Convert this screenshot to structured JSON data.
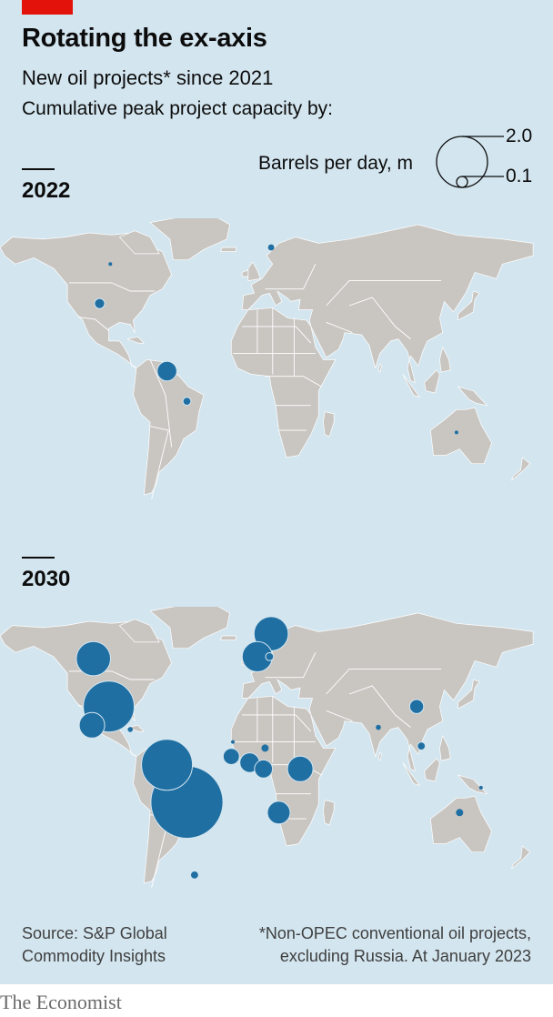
{
  "header": {
    "title": "Rotating the ex-axis",
    "subtitle": "New oil projects* since 2021",
    "subsubtitle": "Cumulative peak project capacity by:"
  },
  "legend": {
    "label": "Barrels per day, m",
    "max_label": "2.0",
    "min_label": "0.1",
    "max_value": 2.0,
    "min_value": 0.1
  },
  "colors": {
    "bubble": "#1f6fa3",
    "land": "#c9c6c2",
    "sea": "#d3e5ef",
    "borders": "#ffffff"
  },
  "maps": [
    {
      "year": "2022",
      "projects": [
        {
          "place": "Norway",
          "lon": 9,
          "lat": 66,
          "capacity": 0.03
        },
        {
          "place": "Canada",
          "lon": -96,
          "lat": 58,
          "capacity": 0.01
        },
        {
          "place": "United States",
          "lon": -103,
          "lat": 39,
          "capacity": 0.08
        },
        {
          "place": "Guyana",
          "lon": -59,
          "lat": 6.5,
          "capacity": 0.3
        },
        {
          "place": "Brazil",
          "lon": -46,
          "lat": -8,
          "capacity": 0.05
        },
        {
          "place": "Australia",
          "lon": 130,
          "lat": -23,
          "capacity": 0.01
        }
      ]
    },
    {
      "year": "2030",
      "projects": [
        {
          "place": "Canada",
          "lon": -107,
          "lat": 55,
          "capacity": 0.9
        },
        {
          "place": "United States",
          "lon": -97,
          "lat": 32,
          "capacity": 2.0
        },
        {
          "place": "Mexico",
          "lon": -108,
          "lat": 23,
          "capacity": 0.5
        },
        {
          "place": "Caribbean",
          "lon": -83,
          "lat": 21,
          "capacity": 0.02
        },
        {
          "place": "Norway",
          "lon": 9,
          "lat": 67,
          "capacity": 0.9
        },
        {
          "place": "United Kingdom",
          "lon": 0,
          "lat": 56,
          "capacity": 0.7
        },
        {
          "place": "Denmark",
          "lon": 8,
          "lat": 56,
          "capacity": 0.05
        },
        {
          "place": "Guyana",
          "lon": -59,
          "lat": 4,
          "capacity": 2.0
        },
        {
          "place": "Brazil",
          "lon": -46,
          "lat": -14,
          "capacity": 4.0
        },
        {
          "place": "Argentina",
          "lon": -41,
          "lat": -49,
          "capacity": 0.05
        },
        {
          "place": "Senegal",
          "lon": -16,
          "lat": 15,
          "capacity": 0.01
        },
        {
          "place": "Guinea",
          "lon": -17,
          "lat": 8,
          "capacity": 0.2
        },
        {
          "place": "Ghana",
          "lon": -5,
          "lat": 5,
          "capacity": 0.3
        },
        {
          "place": "Niger",
          "lon": 5,
          "lat": 12,
          "capacity": 0.04
        },
        {
          "place": "Nigeria",
          "lon": 4,
          "lat": 2,
          "capacity": 0.25
        },
        {
          "place": "Uganda",
          "lon": 28,
          "lat": 2,
          "capacity": 0.5
        },
        {
          "place": "Namibia",
          "lon": 14,
          "lat": -19,
          "capacity": 0.4
        },
        {
          "place": "China",
          "lon": 104,
          "lat": 32,
          "capacity": 0.15
        },
        {
          "place": "India",
          "lon": 79,
          "lat": 22,
          "capacity": 0.02
        },
        {
          "place": "Vietnam",
          "lon": 107,
          "lat": 13,
          "capacity": 0.05
        },
        {
          "place": "Papua New Guinea",
          "lon": 146,
          "lat": -7,
          "capacity": 0.01
        },
        {
          "place": "Australia",
          "lon": 132,
          "lat": -19,
          "capacity": 0.04
        }
      ]
    }
  ],
  "footer": {
    "source_line1": "Source: S&P Global",
    "source_line2": "Commodity Insights",
    "note_line1": "*Non-OPEC conventional oil projects,",
    "note_line2": "excluding Russia. At January 2023",
    "brand": "The Economist"
  }
}
